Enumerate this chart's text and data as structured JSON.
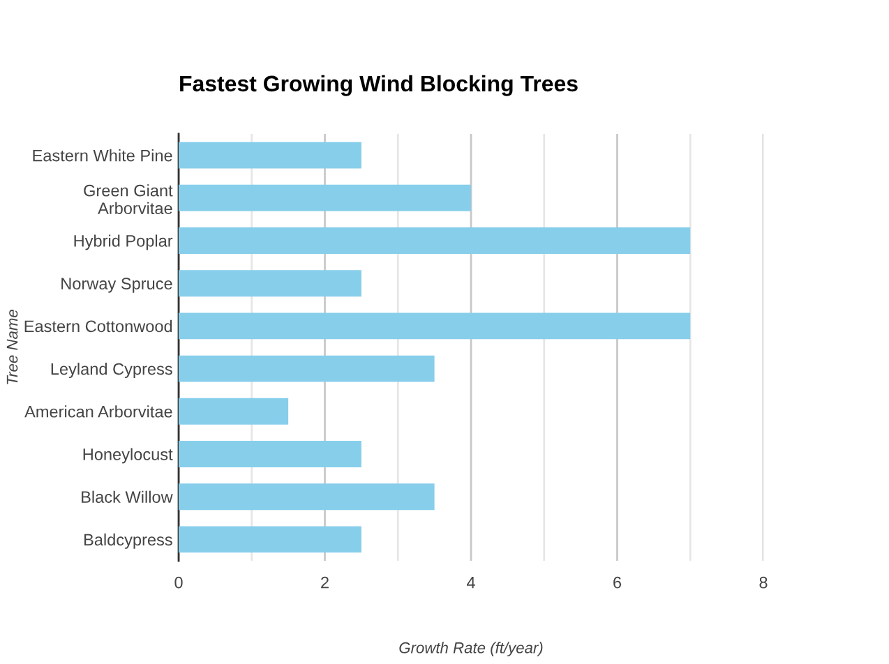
{
  "chart_data": {
    "type": "bar",
    "orientation": "horizontal",
    "title": "Fastest Growing Wind Blocking Trees",
    "xlabel": "Growth Rate (ft/year)",
    "ylabel": "Tree Name",
    "categories": [
      "Eastern White Pine",
      "Green Giant Arborvitae",
      "Hybrid Poplar",
      "Norway Spruce",
      "Eastern Cottonwood",
      "Leyland Cypress",
      "American Arborvitae",
      "Honeylocust",
      "Black Willow",
      "Baldcypress"
    ],
    "values": [
      2.5,
      4,
      7,
      2.5,
      7,
      3.5,
      1.5,
      2.5,
      3.5,
      2.5
    ],
    "color": "#87ceeb",
    "xlim": [
      0,
      8
    ],
    "xticks": [
      0,
      {
        "value": 1,
        "label": null
      },
      2,
      {
        "value": 3,
        "label": null
      },
      4,
      {
        "value": 5,
        "label": null
      },
      6,
      {
        "value": 7,
        "label": null
      },
      8
    ],
    "grid": "x",
    "legend": false
  }
}
